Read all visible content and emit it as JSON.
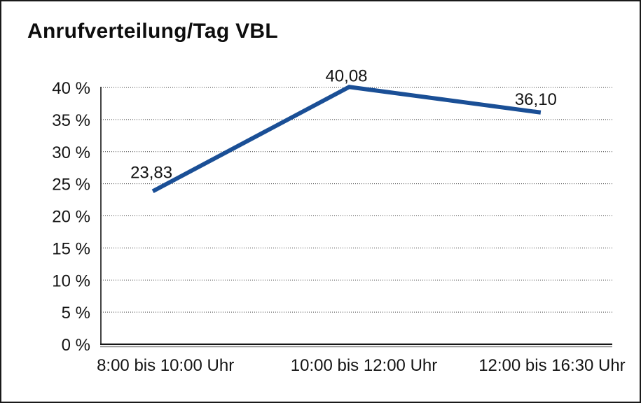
{
  "chart_data": {
    "type": "line",
    "title": "Anrufverteilung/Tag VBL",
    "categories": [
      "8:00 bis 10:00 Uhr",
      "10:00 bis 12:00 Uhr",
      "12:00 bis 16:30 Uhr"
    ],
    "series": [
      {
        "values": [
          23.83,
          40.08,
          36.1
        ],
        "value_labels": [
          "23,83",
          "40,08",
          "36,10"
        ],
        "color": "#1a4f96"
      }
    ],
    "xlabel": "",
    "ylabel": "",
    "ylim": [
      0,
      40
    ],
    "y_tick_step": 5,
    "y_tick_suffix": " %",
    "y_tick_labels": [
      "0 %",
      "5 %",
      "10 %",
      "15 %",
      "20 %",
      "25 %",
      "30 %",
      "35 %",
      "40 %"
    ],
    "grid": "dotted-horizontal",
    "legend_position": "none",
    "axis_color": "#141414",
    "axis_shadow_color": "#8c8c8c",
    "gridline_color": "#3c3c3c"
  }
}
